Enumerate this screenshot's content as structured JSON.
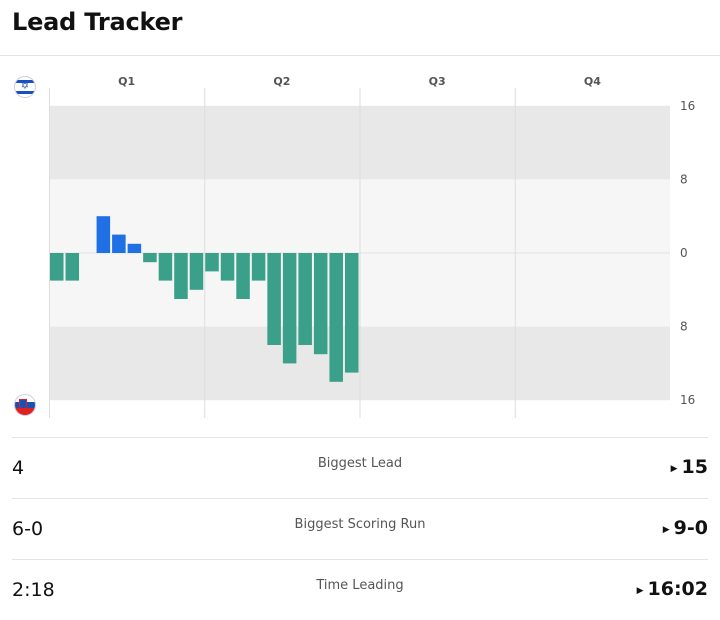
{
  "header": {
    "title": "Lead Tracker"
  },
  "teams": {
    "top": {
      "flag_icon": "israel-flag-icon"
    },
    "bottom": {
      "flag_icon": "slovenia-flag-icon"
    }
  },
  "colors": {
    "top_team": "#1f6fe5",
    "bottom_team": "#3aa08a",
    "band_dark": "#e8e8e8",
    "band_light": "#f6f6f6",
    "grid": "#dddddd"
  },
  "chart_data": {
    "type": "bar",
    "quarters": [
      "Q1",
      "Q2",
      "Q3",
      "Q4"
    ],
    "y_tick_labels_top": [
      "16",
      "8",
      "0"
    ],
    "y_tick_labels_bottom": [
      "8",
      "16"
    ],
    "ylim": [
      -16,
      16
    ],
    "segments_per_quarter": 10,
    "margins": [
      -3,
      -3,
      0,
      4,
      2,
      1,
      -1,
      -3,
      -5,
      -4,
      -2,
      -3,
      -5,
      -3,
      -10,
      -12,
      -10,
      -11,
      -14,
      -13
    ],
    "positive_team": "top",
    "negative_team": "bottom",
    "grid": true
  },
  "stats": [
    {
      "label": "Biggest Lead",
      "left": "4",
      "right": "15"
    },
    {
      "label": "Biggest Scoring Run",
      "left": "6-0",
      "right": "9-0"
    },
    {
      "label": "Time Leading",
      "left": "2:18",
      "right": "16:02"
    }
  ]
}
